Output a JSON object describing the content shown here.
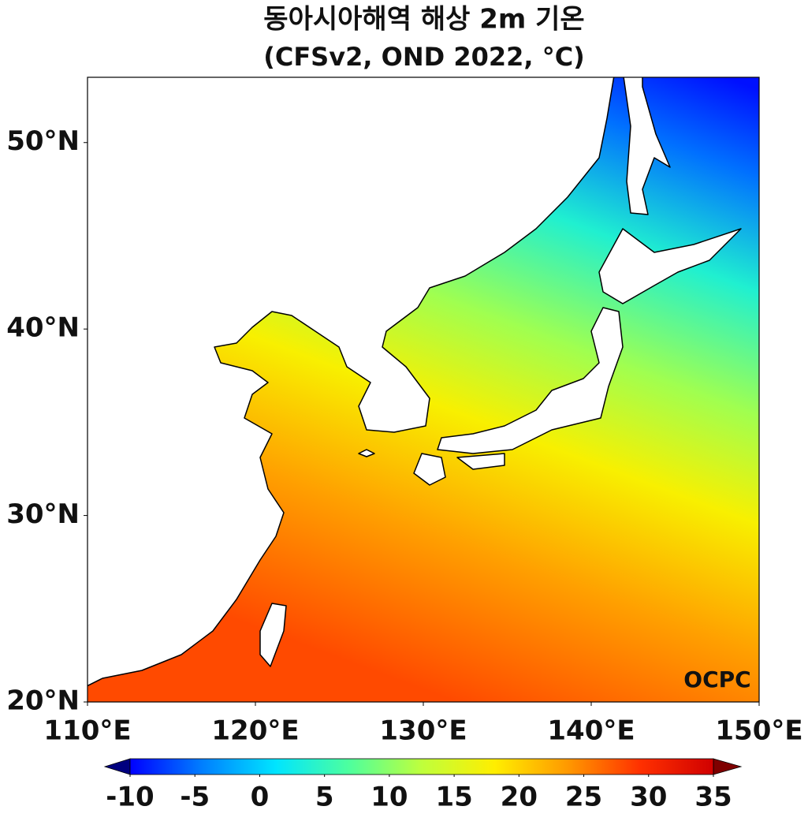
{
  "chart_data": {
    "type": "map",
    "title": "동아시아해역 해상 2m 기온",
    "subtitle": "(CFSv2, OND 2022, °C)",
    "xlim": [
      110,
      150
    ],
    "ylim": [
      20,
      53.5
    ],
    "xticks": [
      {
        "value": 110,
        "label": "110°E"
      },
      {
        "value": 120,
        "label": "120°E"
      },
      {
        "value": 130,
        "label": "130°E"
      },
      {
        "value": 140,
        "label": "140°E"
      },
      {
        "value": 150,
        "label": "150°E"
      }
    ],
    "yticks": [
      {
        "value": 20,
        "label": "20°N"
      },
      {
        "value": 30,
        "label": "30°N"
      },
      {
        "value": 40,
        "label": "40°N"
      },
      {
        "value": 50,
        "label": "50°N"
      }
    ],
    "colorbar": {
      "lim": [
        -10,
        35
      ],
      "ticks": [
        -10,
        -5,
        0,
        5,
        10,
        15,
        20,
        25,
        30,
        35
      ],
      "colors": [
        "#00007f",
        "#0000ff",
        "#0080ff",
        "#00e5ff",
        "#4dff9e",
        "#bfff3c",
        "#ffee00",
        "#ff9900",
        "#ff3000",
        "#d00000",
        "#7f0000"
      ]
    },
    "logo": "OCPC"
  }
}
